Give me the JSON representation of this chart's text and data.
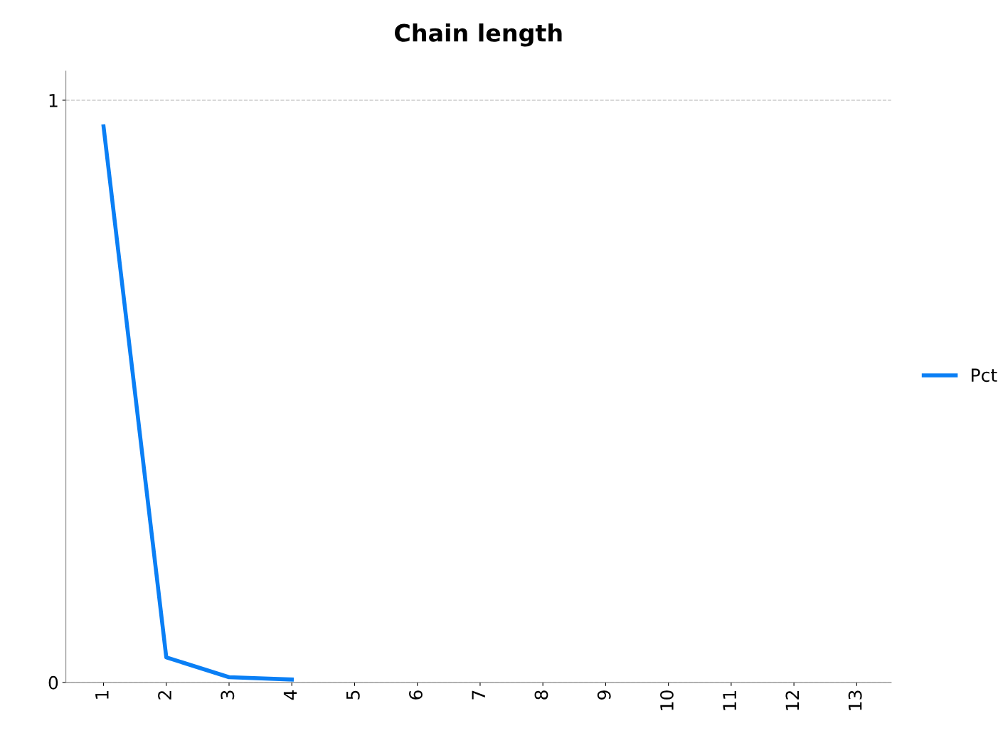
{
  "chart_data": {
    "type": "line",
    "title": "Chain length",
    "categories": [
      "1",
      "2",
      "3",
      "4",
      "5",
      "6",
      "7",
      "8",
      "9",
      "10",
      "11",
      "12",
      "13"
    ],
    "series": [
      {
        "name": "Pct",
        "color": "#0a7ff5",
        "values": [
          0.955,
          0.043,
          0.009,
          0.005,
          null,
          null,
          null,
          null,
          null,
          null,
          null,
          null,
          null
        ]
      }
    ],
    "ylim": [
      0,
      1.05
    ],
    "yticks": [
      0,
      1
    ],
    "grid": "y",
    "legend": "right",
    "marker": "none",
    "line_style": "solid"
  }
}
